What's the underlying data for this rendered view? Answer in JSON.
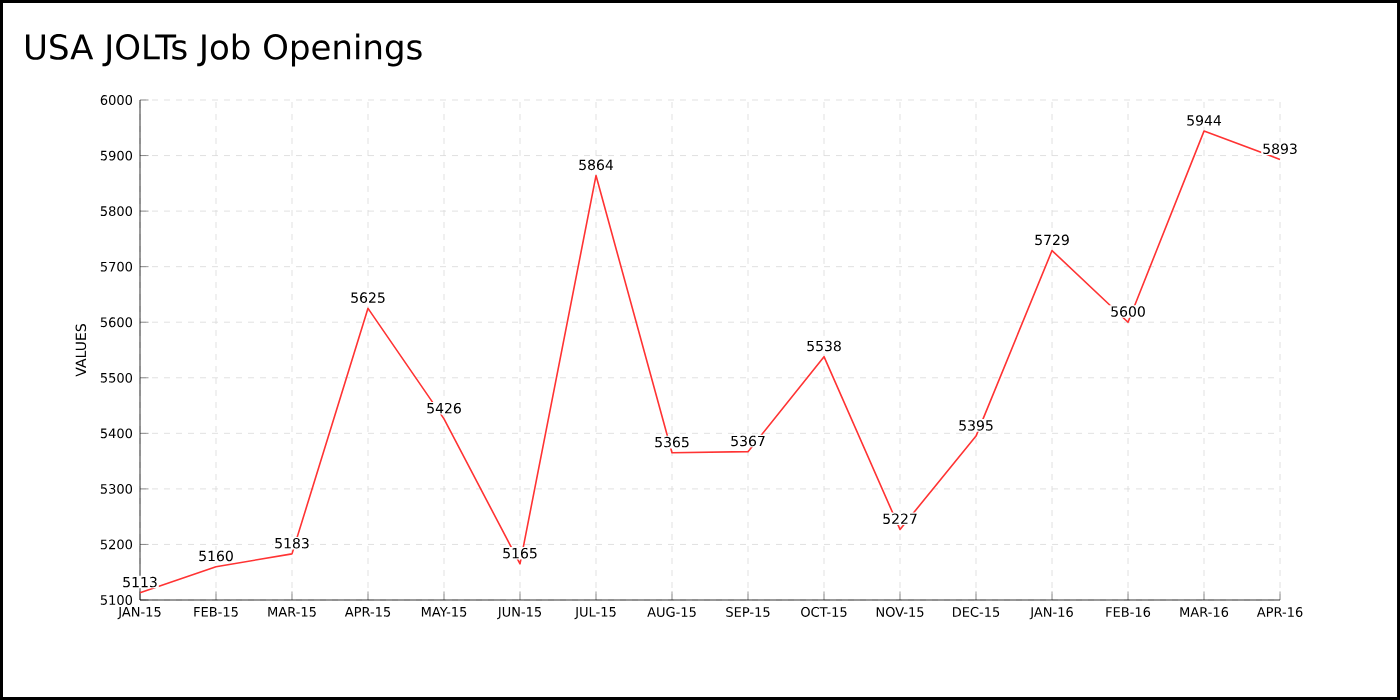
{
  "chart_data": {
    "type": "line",
    "title": "USA JOLTs Job Openings",
    "ylabel": "VALUES",
    "categories": [
      "JAN-15",
      "FEB-15",
      "MAR-15",
      "APR-15",
      "MAY-15",
      "JUN-15",
      "JUL-15",
      "AUG-15",
      "SEP-15",
      "OCT-15",
      "NOV-15",
      "DEC-15",
      "JAN-16",
      "FEB-16",
      "MAR-16",
      "APR-16"
    ],
    "series": [
      {
        "color": "#ff3333",
        "values": [
          5113,
          5160,
          5183,
          5625,
          5426,
          5165,
          5864,
          5365,
          5367,
          5538,
          5227,
          5395,
          5729,
          5600,
          5944,
          5893
        ]
      }
    ],
    "ylim": [
      5100,
      6000
    ],
    "yticks": [
      5100,
      5200,
      5300,
      5400,
      5500,
      5600,
      5700,
      5800,
      5900,
      6000
    ],
    "grid": true,
    "data_labels": true,
    "marker": "none",
    "line_style": "solid"
  }
}
